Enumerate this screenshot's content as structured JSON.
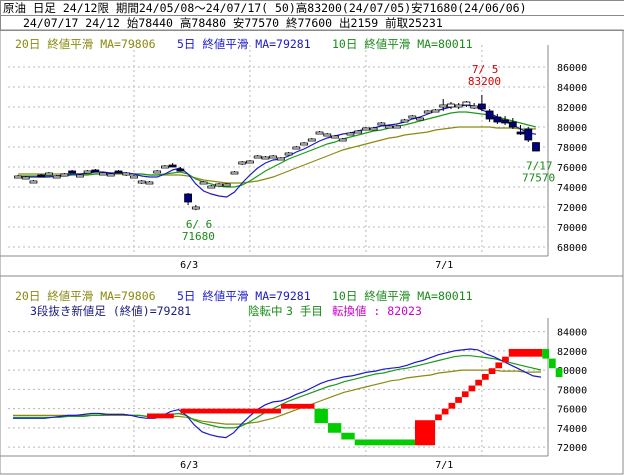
{
  "header": {
    "line1": "原油 日足 24/12限 期間24/05/08〜24/07/17( 50)高83200(24/07/05)安71680(24/06/06)",
    "line2": "24/07/17 24/12 始78440 高78480 安77570 終77600 出2159 前取25231"
  },
  "legend_top": {
    "ma20": "20日 終値平滑 MA=79806",
    "ma5": "5日 終値平滑 MA=79281",
    "ma10": "10日 終値平滑 MA=80011"
  },
  "legend_bottom": {
    "ma20": "20日 終値平滑 MA=79806",
    "ma5": "5日 終値平滑 MA=79281",
    "ma10": "10日 終値平滑 MA=80011",
    "sanpe_label": "3段抜き新値足 (終値)=79281",
    "state": "陰転中",
    "count": "3 手目",
    "conversion": "転換値 : 82023"
  },
  "colors": {
    "ma20": "#8a8a10",
    "ma5": "#1a1acc",
    "ma10": "#1a9a1a",
    "up_box": "#ffffff",
    "down_box": "#000080",
    "grid": "#b8b8b8",
    "sanpe_up": "#ff0000",
    "sanpe_down": "#00cc00"
  },
  "chart_data": [
    {
      "type": "candlestick",
      "title": "",
      "x_ticks": [
        "6/3",
        "7/1"
      ],
      "y_ticks": [
        "68000",
        "70000",
        "72000",
        "74000",
        "76000",
        "78000",
        "80000",
        "82000",
        "84000",
        "86000"
      ],
      "ylim": [
        67500,
        87500
      ],
      "ohlc": [
        [
          75000,
          75200,
          74900,
          75100
        ],
        [
          74900,
          75100,
          74800,
          75000
        ],
        [
          74500,
          74700,
          74400,
          74600
        ],
        [
          75200,
          75300,
          75000,
          75100
        ],
        [
          75300,
          75500,
          75200,
          75400
        ],
        [
          75000,
          75200,
          74900,
          75100
        ],
        [
          75200,
          75400,
          75100,
          75300
        ],
        [
          75600,
          75700,
          75400,
          75500
        ],
        [
          75100,
          75300,
          75000,
          75200
        ],
        [
          75500,
          75700,
          75400,
          75600
        ],
        [
          75700,
          75800,
          75500,
          75600
        ],
        [
          75300,
          75500,
          75200,
          75400
        ],
        [
          75200,
          75400,
          75100,
          75300
        ],
        [
          75600,
          75700,
          75400,
          75500
        ],
        [
          75300,
          75500,
          75100,
          75400
        ],
        [
          75000,
          75200,
          74900,
          75100
        ],
        [
          74500,
          74700,
          74300,
          74600
        ],
        [
          74400,
          74600,
          74300,
          74500
        ],
        [
          75500,
          75700,
          75400,
          75600
        ],
        [
          76000,
          76200,
          75900,
          76100
        ],
        [
          76200,
          76400,
          76000,
          76100
        ],
        [
          75800,
          76000,
          75600,
          75700
        ],
        [
          73300,
          73400,
          72200,
          72500
        ],
        [
          71900,
          72200,
          71680,
          72000
        ],
        [
          74400,
          74600,
          74300,
          74500
        ],
        [
          74000,
          74200,
          73900,
          74100
        ],
        [
          74200,
          74400,
          74100,
          74300
        ],
        [
          74200,
          74400,
          74100,
          74300
        ],
        [
          75400,
          75600,
          75300,
          75500
        ],
        [
          76400,
          76600,
          76200,
          76500
        ],
        [
          76500,
          76700,
          76400,
          76600
        ],
        [
          77000,
          77200,
          76900,
          77100
        ],
        [
          76900,
          77100,
          76800,
          77000
        ],
        [
          77000,
          77200,
          76900,
          77100
        ],
        [
          76800,
          77000,
          76700,
          76900
        ],
        [
          77300,
          77500,
          77200,
          77400
        ],
        [
          77900,
          78100,
          77800,
          78000
        ],
        [
          78300,
          78500,
          78200,
          78400
        ],
        [
          78700,
          78900,
          78600,
          78800
        ],
        [
          79400,
          79600,
          79300,
          79500
        ],
        [
          79200,
          79400,
          79100,
          79300
        ],
        [
          79000,
          79200,
          78900,
          79100
        ],
        [
          78700,
          78900,
          78600,
          78800
        ],
        [
          79300,
          79500,
          79200,
          79400
        ],
        [
          79500,
          79700,
          79400,
          79600
        ],
        [
          79800,
          80000,
          79700,
          79900
        ],
        [
          79800,
          80000,
          79700,
          79900
        ],
        [
          80300,
          80500,
          80200,
          80400
        ],
        [
          80000,
          80200,
          79900,
          80100
        ],
        [
          80000,
          80200,
          79900,
          80100
        ],
        [
          80600,
          80800,
          80500,
          80700
        ],
        [
          81000,
          81200,
          80900,
          81100
        ],
        [
          80800,
          81000,
          80700,
          80900
        ],
        [
          81500,
          81700,
          81400,
          81600
        ],
        [
          81600,
          81800,
          81500,
          81700
        ],
        [
          82000,
          82800,
          81600,
          82200
        ],
        [
          82000,
          82500,
          81800,
          82300
        ],
        [
          82000,
          82400,
          81800,
          82200
        ],
        [
          82200,
          82600,
          82000,
          82500
        ],
        [
          82000,
          82400,
          81800,
          82100
        ],
        [
          82300,
          83200,
          81600,
          81800
        ],
        [
          81600,
          81800,
          80500,
          80800
        ],
        [
          81000,
          81300,
          80300,
          80500
        ],
        [
          80700,
          81100,
          80200,
          80400
        ],
        [
          80500,
          80900,
          79800,
          80000
        ],
        [
          79500,
          80200,
          79200,
          79400
        ],
        [
          79800,
          80000,
          78500,
          78700
        ],
        [
          78440,
          78480,
          77570,
          77600
        ]
      ],
      "ma5": [
        75000,
        75000,
        75000,
        75000,
        75000,
        75100,
        75200,
        75300,
        75300,
        75400,
        75500,
        75500,
        75400,
        75400,
        75400,
        75300,
        75100,
        75000,
        75000,
        75300,
        75700,
        75900,
        75300,
        74300,
        73600,
        73300,
        73100,
        73000,
        73500,
        74400,
        75200,
        75900,
        76400,
        76700,
        76800,
        77100,
        77500,
        77800,
        78200,
        78600,
        78900,
        79100,
        79300,
        79400,
        79600,
        79800,
        79900,
        80100,
        80200,
        80300,
        80500,
        80800,
        81000,
        81300,
        81600,
        81800,
        82000,
        82100,
        82200,
        82100,
        81700,
        81400,
        81000,
        80600,
        80200,
        79800,
        79400,
        79281
      ],
      "ma10": [
        75100,
        75100,
        75100,
        75100,
        75100,
        75100,
        75100,
        75200,
        75200,
        75200,
        75300,
        75300,
        75400,
        75400,
        75400,
        75300,
        75300,
        75200,
        75200,
        75300,
        75400,
        75500,
        75300,
        74800,
        74500,
        74300,
        74100,
        74000,
        74000,
        74200,
        74600,
        75100,
        75600,
        76000,
        76400,
        76800,
        77100,
        77400,
        77700,
        78000,
        78300,
        78500,
        78800,
        79000,
        79200,
        79400,
        79600,
        79700,
        79900,
        80100,
        80200,
        80400,
        80600,
        80800,
        81000,
        81200,
        81400,
        81500,
        81500,
        81400,
        81300,
        81200,
        81000,
        80800,
        80600,
        80400,
        80200,
        80011
      ],
      "ma20": [
        75300,
        75300,
        75300,
        75300,
        75300,
        75300,
        75300,
        75300,
        75300,
        75300,
        75300,
        75300,
        75300,
        75300,
        75300,
        75300,
        75300,
        75200,
        75200,
        75200,
        75200,
        75200,
        75100,
        74900,
        74700,
        74600,
        74500,
        74400,
        74400,
        74400,
        74500,
        74600,
        74800,
        75000,
        75300,
        75600,
        75900,
        76200,
        76500,
        76800,
        77100,
        77400,
        77700,
        77900,
        78100,
        78300,
        78500,
        78700,
        78900,
        79000,
        79200,
        79300,
        79400,
        79500,
        79700,
        79800,
        79900,
        80000,
        80000,
        80000,
        80000,
        80000,
        79900,
        79900,
        79900,
        79800,
        79800,
        79806
      ],
      "annotations": [
        {
          "text": "7/ 5",
          "sub": "83200",
          "index": 60,
          "value": 83200,
          "color": "#d40000",
          "pos": "above"
        },
        {
          "text": "6/ 6",
          "sub": "71680",
          "index": 23,
          "value": 71680,
          "color": "#1a8a1a",
          "pos": "below"
        },
        {
          "text": "7/17",
          "sub": "77570",
          "index": 67,
          "value": 77570,
          "color": "#1a8a1a",
          "pos": "below"
        }
      ]
    },
    {
      "type": "three-line-break",
      "title": "",
      "x_ticks": [
        "6/3",
        "7/1"
      ],
      "y_ticks": [
        "72000",
        "74000",
        "76000",
        "78000",
        "80000",
        "82000",
        "84000"
      ],
      "ylim": [
        71500,
        85000
      ],
      "bricks": [
        {
          "dir": "up",
          "from": 75000,
          "to": 75500,
          "start": 20,
          "end": 24
        },
        {
          "dir": "up",
          "from": 75500,
          "to": 76000,
          "start": 25,
          "end": 40
        },
        {
          "dir": "up",
          "from": 76000,
          "to": 76500,
          "start": 40,
          "end": 45
        },
        {
          "dir": "down",
          "from": 76000,
          "to": 74500,
          "start": 45,
          "end": 47
        },
        {
          "dir": "down",
          "from": 74500,
          "to": 73500,
          "start": 47,
          "end": 49
        },
        {
          "dir": "down",
          "from": 73500,
          "to": 72800,
          "start": 49,
          "end": 51
        },
        {
          "dir": "down",
          "from": 72800,
          "to": 72200,
          "start": 51,
          "end": 60
        },
        {
          "dir": "up",
          "from": 72200,
          "to": 74800,
          "start": 60,
          "end": 63
        },
        {
          "dir": "up",
          "from": 74800,
          "to": 75400,
          "start": 63,
          "end": 64
        },
        {
          "dir": "up",
          "from": 75400,
          "to": 76000,
          "start": 64,
          "end": 65
        },
        {
          "dir": "up",
          "from": 76000,
          "to": 76600,
          "start": 65,
          "end": 66
        },
        {
          "dir": "up",
          "from": 76600,
          "to": 77200,
          "start": 66,
          "end": 67
        },
        {
          "dir": "up",
          "from": 77200,
          "to": 77800,
          "start": 67,
          "end": 68
        },
        {
          "dir": "up",
          "from": 77800,
          "to": 78400,
          "start": 68,
          "end": 69
        },
        {
          "dir": "up",
          "from": 78400,
          "to": 79000,
          "start": 69,
          "end": 70
        },
        {
          "dir": "up",
          "from": 79000,
          "to": 79600,
          "start": 70,
          "end": 71
        },
        {
          "dir": "up",
          "from": 79600,
          "to": 80200,
          "start": 71,
          "end": 72
        },
        {
          "dir": "up",
          "from": 80200,
          "to": 80800,
          "start": 72,
          "end": 73
        },
        {
          "dir": "up",
          "from": 80800,
          "to": 81400,
          "start": 73,
          "end": 74
        },
        {
          "dir": "up",
          "from": 81400,
          "to": 82200,
          "start": 74,
          "end": 79
        },
        {
          "dir": "down",
          "from": 82200,
          "to": 81200,
          "start": 79,
          "end": 80
        },
        {
          "dir": "down",
          "from": 81200,
          "to": 80200,
          "start": 80,
          "end": 81
        },
        {
          "dir": "down",
          "from": 80200,
          "to": 79281,
          "start": 81,
          "end": 82
        }
      ],
      "ma5": [
        75000,
        75000,
        75000,
        75000,
        75000,
        75100,
        75200,
        75300,
        75300,
        75400,
        75500,
        75500,
        75400,
        75400,
        75400,
        75300,
        75100,
        75000,
        75000,
        75300,
        75700,
        75900,
        75300,
        74300,
        73600,
        73300,
        73100,
        73000,
        73500,
        74400,
        75200,
        75900,
        76400,
        76700,
        76800,
        77100,
        77500,
        77800,
        78200,
        78600,
        78900,
        79100,
        79300,
        79400,
        79600,
        79800,
        79900,
        80100,
        80200,
        80300,
        80500,
        80800,
        81000,
        81300,
        81600,
        81800,
        82000,
        82100,
        82200,
        82100,
        81700,
        81400,
        81000,
        80600,
        80200,
        79800,
        79400,
        79281
      ],
      "ma10": [
        75100,
        75100,
        75100,
        75100,
        75100,
        75100,
        75100,
        75200,
        75200,
        75200,
        75300,
        75300,
        75400,
        75400,
        75400,
        75300,
        75300,
        75200,
        75200,
        75300,
        75400,
        75500,
        75300,
        74800,
        74500,
        74300,
        74100,
        74000,
        74000,
        74200,
        74600,
        75100,
        75600,
        76000,
        76400,
        76800,
        77100,
        77400,
        77700,
        78000,
        78300,
        78500,
        78800,
        79000,
        79200,
        79400,
        79600,
        79700,
        79900,
        80100,
        80200,
        80400,
        80600,
        80800,
        81000,
        81200,
        81400,
        81500,
        81500,
        81400,
        81300,
        81200,
        81000,
        80800,
        80600,
        80400,
        80200,
        80011
      ],
      "ma20": [
        75300,
        75300,
        75300,
        75300,
        75300,
        75300,
        75300,
        75300,
        75300,
        75300,
        75300,
        75300,
        75300,
        75300,
        75300,
        75300,
        75300,
        75200,
        75200,
        75200,
        75200,
        75200,
        75100,
        74900,
        74700,
        74600,
        74500,
        74400,
        74400,
        74400,
        74500,
        74600,
        74800,
        75000,
        75300,
        75600,
        75900,
        76200,
        76500,
        76800,
        77100,
        77400,
        77700,
        77900,
        78100,
        78300,
        78500,
        78700,
        78900,
        79000,
        79200,
        79300,
        79400,
        79500,
        79700,
        79800,
        79900,
        80000,
        80000,
        80000,
        80000,
        80000,
        79900,
        79900,
        79900,
        79800,
        79800,
        79806
      ]
    }
  ]
}
